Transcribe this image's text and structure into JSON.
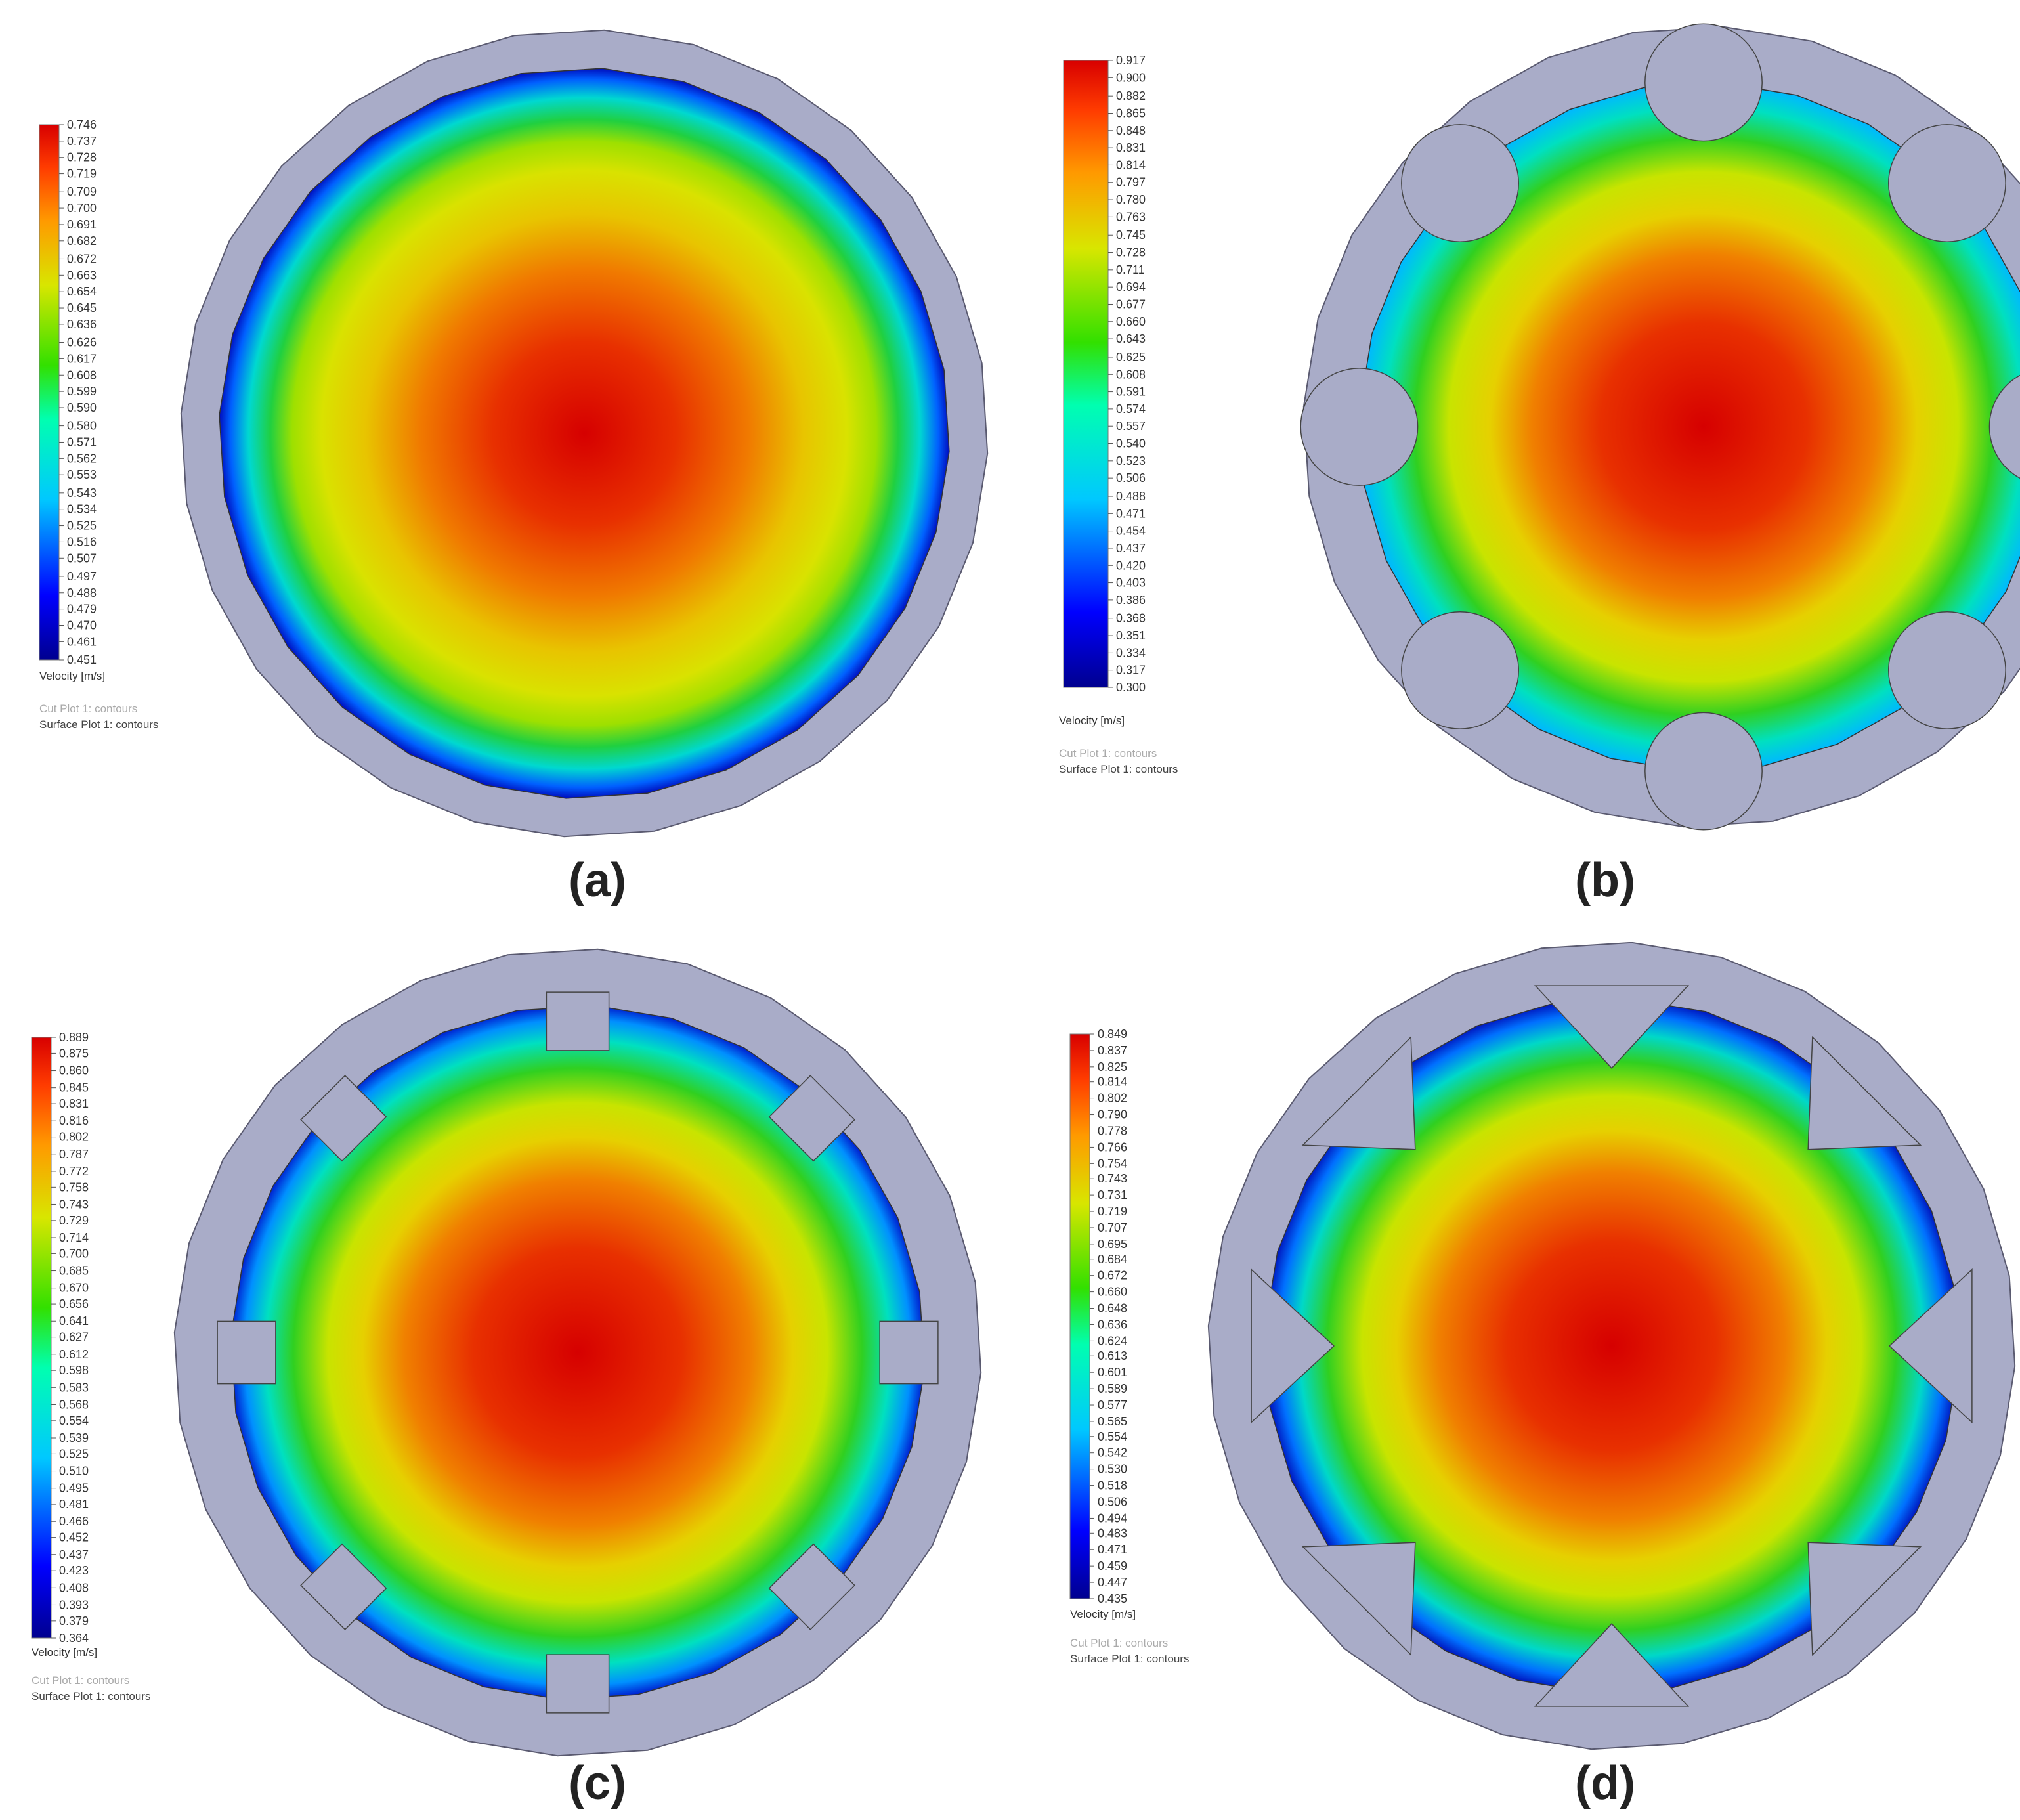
{
  "figure": {
    "captions": [
      "(a)",
      "(b)",
      "(c)",
      "(d)"
    ]
  },
  "colors": {
    "solid": "#a9acc8",
    "solid_stroke": "#5a5a70"
  },
  "chart_data": [
    {
      "type": "heatmap",
      "panel": "a",
      "title": "",
      "geometry": "plain circular pipe",
      "colorbar_label": "Velocity [m/s]",
      "legend_lines": [
        "Cut Plot 1: contours",
        "Surface Plot 1: contours"
      ],
      "vmin": 0.451,
      "vmax": 0.746,
      "ticks": [
        0.746,
        0.737,
        0.728,
        0.719,
        0.709,
        0.7,
        0.691,
        0.682,
        0.672,
        0.663,
        0.654,
        0.645,
        0.636,
        0.626,
        0.617,
        0.608,
        0.599,
        0.59,
        0.58,
        0.571,
        0.562,
        0.553,
        0.543,
        0.534,
        0.525,
        0.516,
        0.507,
        0.497,
        0.488,
        0.479,
        0.47,
        0.461,
        0.451
      ],
      "tick_labels": [
        "0.746",
        "0.737",
        "0.728",
        "0.719",
        "0.709",
        "0.700",
        "0.691",
        "0.682",
        "0.672",
        "0.663",
        "0.654",
        "0.645",
        "0.636",
        "0.626",
        "0.617",
        "0.608",
        "0.599",
        "0.590",
        "0.580",
        "0.571",
        "0.562",
        "0.553",
        "0.543",
        "0.534",
        "0.525",
        "0.516",
        "0.507",
        "0.497",
        "0.488",
        "0.479",
        "0.470",
        "0.461",
        "0.451"
      ]
    },
    {
      "type": "heatmap",
      "panel": "b",
      "title": "",
      "geometry": "pipe with 8 semicircular ribs",
      "colorbar_label": "Velocity [m/s]",
      "legend_lines": [
        "Cut Plot 1: contours",
        "Surface Plot 1: contours"
      ],
      "vmin": 0.3,
      "vmax": 0.917,
      "ticks": [
        0.917,
        0.9,
        0.882,
        0.865,
        0.848,
        0.831,
        0.814,
        0.797,
        0.78,
        0.763,
        0.745,
        0.728,
        0.711,
        0.694,
        0.677,
        0.66,
        0.643,
        0.625,
        0.608,
        0.591,
        0.574,
        0.557,
        0.54,
        0.523,
        0.506,
        0.488,
        0.471,
        0.454,
        0.437,
        0.42,
        0.403,
        0.386,
        0.368,
        0.351,
        0.334,
        0.317,
        0.3
      ],
      "tick_labels": [
        "0.917",
        "0.900",
        "0.882",
        "0.865",
        "0.848",
        "0.831",
        "0.814",
        "0.797",
        "0.780",
        "0.763",
        "0.745",
        "0.728",
        "0.711",
        "0.694",
        "0.677",
        "0.660",
        "0.643",
        "0.625",
        "0.608",
        "0.591",
        "0.574",
        "0.557",
        "0.540",
        "0.523",
        "0.506",
        "0.488",
        "0.471",
        "0.454",
        "0.437",
        "0.420",
        "0.403",
        "0.386",
        "0.368",
        "0.351",
        "0.334",
        "0.317",
        "0.300"
      ]
    },
    {
      "type": "heatmap",
      "panel": "c",
      "title": "",
      "geometry": "pipe with 8 rectangular ribs",
      "colorbar_label": "Velocity [m/s]",
      "legend_lines": [
        "Cut Plot 1: contours",
        "Surface Plot 1: contours"
      ],
      "vmin": 0.364,
      "vmax": 0.889,
      "ticks": [
        0.889,
        0.875,
        0.86,
        0.845,
        0.831,
        0.816,
        0.802,
        0.787,
        0.772,
        0.758,
        0.743,
        0.729,
        0.714,
        0.7,
        0.685,
        0.67,
        0.656,
        0.641,
        0.627,
        0.612,
        0.598,
        0.583,
        0.568,
        0.554,
        0.539,
        0.525,
        0.51,
        0.495,
        0.481,
        0.466,
        0.452,
        0.437,
        0.423,
        0.408,
        0.393,
        0.379,
        0.364
      ],
      "tick_labels": [
        "0.889",
        "0.875",
        "0.860",
        "0.845",
        "0.831",
        "0.816",
        "0.802",
        "0.787",
        "0.772",
        "0.758",
        "0.743",
        "0.729",
        "0.714",
        "0.700",
        "0.685",
        "0.670",
        "0.656",
        "0.641",
        "0.627",
        "0.612",
        "0.598",
        "0.583",
        "0.568",
        "0.554",
        "0.539",
        "0.525",
        "0.510",
        "0.495",
        "0.481",
        "0.466",
        "0.452",
        "0.437",
        "0.423",
        "0.408",
        "0.393",
        "0.379",
        "0.364"
      ]
    },
    {
      "type": "heatmap",
      "panel": "d",
      "title": "",
      "geometry": "pipe with 8 triangular ribs",
      "colorbar_label": "Velocity [m/s]",
      "legend_lines": [
        "Cut Plot 1: contours",
        "Surface Plot 1: contours"
      ],
      "vmin": 0.435,
      "vmax": 0.849,
      "ticks": [
        0.849,
        0.837,
        0.825,
        0.814,
        0.802,
        0.79,
        0.778,
        0.766,
        0.754,
        0.743,
        0.731,
        0.719,
        0.707,
        0.695,
        0.684,
        0.672,
        0.66,
        0.648,
        0.636,
        0.624,
        0.613,
        0.601,
        0.589,
        0.577,
        0.565,
        0.554,
        0.542,
        0.53,
        0.518,
        0.506,
        0.494,
        0.483,
        0.471,
        0.459,
        0.447,
        0.435
      ],
      "tick_labels": [
        "0.849",
        "0.837",
        "0.825",
        "0.814",
        "0.802",
        "0.790",
        "0.778",
        "0.766",
        "0.754",
        "0.743",
        "0.731",
        "0.719",
        "0.707",
        "0.695",
        "0.684",
        "0.672",
        "0.660",
        "0.648",
        "0.636",
        "0.624",
        "0.613",
        "0.601",
        "0.589",
        "0.577",
        "0.565",
        "0.554",
        "0.542",
        "0.530",
        "0.518",
        "0.506",
        "0.494",
        "0.483",
        "0.471",
        "0.459",
        "0.447",
        "0.435"
      ]
    }
  ]
}
